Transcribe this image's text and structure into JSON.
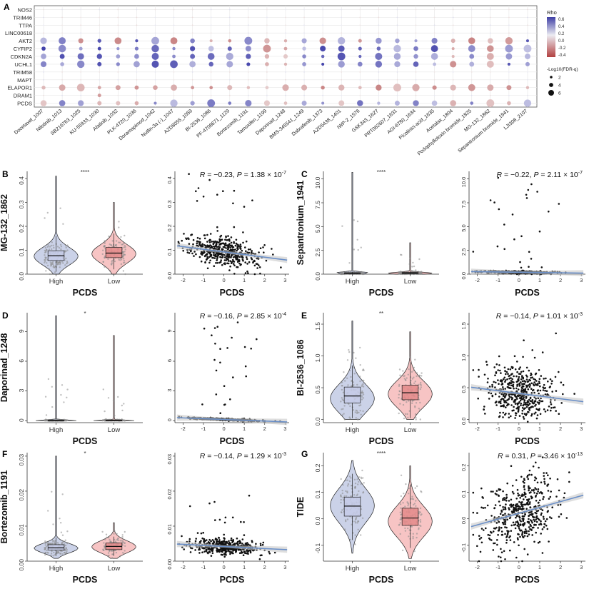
{
  "colors": {
    "high": "#b9c3e0",
    "low": "#f4b0b0",
    "high_box": "#c5cbe8",
    "low_box": "#e48a8a",
    "point": "#111111",
    "jitter": "#8a8a8a",
    "fit_line": "#6a8fc8",
    "ci": "#c8c8c8",
    "rho_high": "#3a3aa0",
    "rho_low": "#b24a4a"
  },
  "chart_data": [
    {
      "panel": "A",
      "type": "dotplot",
      "rows": [
        "NOS2",
        "TRIM46",
        "TTPA",
        "LINC00618",
        "AKT2",
        "CYFIP2",
        "CDKN2A",
        "UCHL1",
        "TRIM58",
        "MAPT",
        "ELAPOR1",
        "DRAM1",
        "PCDS"
      ],
      "columns": [
        "Docetaxel_1007",
        "Nilotinib_1013",
        "SB216763_1025",
        "KU-55933_1030",
        "Afatinib_1032",
        "PLK-4720_1036",
        "Doramapimod_1042",
        "Nutlin-3a (-)_1047",
        "AZD8055_1059",
        "BI-2536_1086",
        "PF-4708671_1129",
        "Bortezomib_1191",
        "Tamoxifen_1199",
        "Daporinad_1248",
        "BMS-345541_1249",
        "Dabrafenib_1373",
        "AZD5438_1401",
        "IWP-2_1576",
        "GSK343_1627",
        "PRT062607_1631",
        "AGI-6780_1634",
        "Picolinici-acid_1635",
        "Acetalax_1804",
        "Podophyllotoxin bromide_1825",
        "MG-132_1862",
        "Sepantronium bromide_1941",
        "LJI308_2107"
      ],
      "active_rows": [
        "AKT2",
        "CYFIP2",
        "CDKN2A",
        "UCHL1",
        "ELAPOR1",
        "PCDS"
      ],
      "legend_rho": {
        "title": "Rho",
        "ticks": [
          "0.6",
          "0.4",
          "0.2",
          "0.0",
          "-0.2",
          "-0.4"
        ],
        "range": [
          -0.45,
          0.65
        ]
      },
      "legend_size": {
        "title": "-Log10(FDR-q)",
        "ticks": [
          "2",
          "4",
          "6"
        ]
      }
    },
    {
      "panel": "B",
      "type": "violin_box",
      "ylabel": "MG-132_1862",
      "xlabel": "PCDS",
      "categories": [
        "High",
        "Low"
      ],
      "yticks": [
        "0.0",
        "0.1",
        "0.2",
        "0.3",
        "0.4"
      ],
      "ylim": [
        0,
        0.43
      ],
      "significance": "****",
      "groups": [
        {
          "name": "High",
          "q1": 0.057,
          "median": 0.077,
          "q3": 0.098,
          "wlo": 0.01,
          "whi": 0.16,
          "min": 0.0,
          "max": 0.41,
          "mode": 0.075
        },
        {
          "name": "Low",
          "q1": 0.069,
          "median": 0.088,
          "q3": 0.112,
          "wlo": 0.02,
          "whi": 0.17,
          "min": 0.0,
          "max": 0.3,
          "mode": 0.085
        }
      ]
    },
    {
      "panel": "B2",
      "type": "scatter",
      "xlabel": "PCDS",
      "xlim": [
        -2.4,
        3.2
      ],
      "ylim": [
        0,
        0.43
      ],
      "xticks": [
        "-2",
        "-1",
        "0",
        "1",
        "2",
        "3"
      ],
      "yticks": [
        "0.0",
        "0.1",
        "0.2",
        "0.3",
        "0.4"
      ],
      "fit": {
        "intercept": 0.093,
        "slope": -0.011
      },
      "stat": {
        "R": "−0.23",
        "P": "1.38 × 10",
        "exp": "-7"
      },
      "cloud": {
        "center": 0.09,
        "spread": 0.03,
        "max": 0.42
      }
    },
    {
      "panel": "C",
      "type": "violin_box",
      "ylabel": "Sepantronium_1941",
      "xlabel": "PCDS",
      "categories": [
        "High",
        "Low"
      ],
      "yticks": [
        "0.0",
        "2.5",
        "5.0",
        "7.5",
        "10.0"
      ],
      "ylim": [
        0,
        10.8
      ],
      "significance": "****",
      "groups": [
        {
          "name": "High",
          "q1": 0.05,
          "median": 0.1,
          "q3": 0.15,
          "wlo": 0.0,
          "whi": 0.25,
          "min": 0.0,
          "max": 10.7,
          "mode": 0.1
        },
        {
          "name": "Low",
          "q1": 0.06,
          "median": 0.12,
          "q3": 0.18,
          "wlo": 0.0,
          "whi": 0.3,
          "min": 0.0,
          "max": 3.3,
          "mode": 0.1
        }
      ]
    },
    {
      "panel": "C2",
      "type": "scatter",
      "xlabel": "PCDS",
      "xlim": [
        -2.4,
        3.2
      ],
      "ylim": [
        0,
        10.8
      ],
      "xticks": [
        "-2",
        "-1",
        "0",
        "1",
        "2",
        "3"
      ],
      "yticks": [
        "0.0",
        "2.5",
        "5.0",
        "7.5",
        "10.0"
      ],
      "fit": {
        "intercept": 0.2,
        "slope": -0.03
      },
      "stat": {
        "R": "−0.22",
        "P": "2.11 × 10",
        "exp": "-7"
      },
      "cloud": {
        "center": 0.12,
        "spread": 0.07,
        "max": 10.5
      }
    },
    {
      "panel": "D",
      "type": "violin_box",
      "ylabel": "Daporinad_1248",
      "xlabel": "PCDS",
      "categories": [
        "High",
        "Low"
      ],
      "yticks": [
        "0",
        "3",
        "6",
        "9"
      ],
      "ylim": [
        -0.2,
        10.9
      ],
      "significance": "*",
      "groups": [
        {
          "name": "High",
          "q1": 0.01,
          "median": 0.02,
          "q3": 0.04,
          "wlo": 0.0,
          "whi": 0.08,
          "min": 0.0,
          "max": 10.6,
          "mode": 0.02
        },
        {
          "name": "Low",
          "q1": 0.01,
          "median": 0.03,
          "q3": 0.05,
          "wlo": 0.0,
          "whi": 0.1,
          "min": 0.0,
          "max": 8.6,
          "mode": 0.02
        }
      ]
    },
    {
      "panel": "D2",
      "type": "scatter",
      "xlabel": "PCDS",
      "xlim": [
        -2.4,
        3.2
      ],
      "ylim": [
        -0.2,
        10.9
      ],
      "xticks": [
        "-2",
        "-1",
        "0",
        "1",
        "2",
        "3"
      ],
      "yticks": [
        "0",
        "3",
        "6",
        "9"
      ],
      "fit": {
        "intercept": 0.12,
        "slope": -0.08
      },
      "stat": {
        "R": "−0.16",
        "P": "2.85 × 10",
        "exp": "-4"
      },
      "cloud": {
        "center": 0.05,
        "spread": 0.05,
        "max": 10.0
      }
    },
    {
      "panel": "E",
      "type": "violin_box",
      "ylabel": "BI-2536_1086",
      "xlabel": "PCDS",
      "categories": [
        "High",
        "Low"
      ],
      "yticks": [
        "0.0",
        "0.5",
        "1.0",
        "1.5"
      ],
      "ylim": [
        -0.05,
        1.68
      ],
      "significance": "**",
      "groups": [
        {
          "name": "High",
          "q1": 0.26,
          "median": 0.37,
          "q3": 0.51,
          "wlo": 0.02,
          "whi": 0.85,
          "min": 0.0,
          "max": 1.55,
          "mode": 0.33
        },
        {
          "name": "Low",
          "q1": 0.31,
          "median": 0.42,
          "q3": 0.54,
          "wlo": 0.02,
          "whi": 0.9,
          "min": 0.0,
          "max": 1.38,
          "mode": 0.4
        }
      ]
    },
    {
      "panel": "E2",
      "type": "scatter",
      "xlabel": "PCDS",
      "xlim": [
        -2.4,
        3.2
      ],
      "ylim": [
        -0.05,
        1.68
      ],
      "xticks": [
        "-2",
        "-1",
        "0",
        "1",
        "2",
        "3"
      ],
      "yticks": [
        "0.0",
        "0.5",
        "1.0",
        "1.5"
      ],
      "fit": {
        "intercept": 0.41,
        "slope": -0.042
      },
      "stat": {
        "R": "−0.14",
        "P": "1.01 × 10",
        "exp": "-3"
      },
      "cloud": {
        "center": 0.42,
        "spread": 0.2,
        "max": 1.4
      }
    },
    {
      "panel": "F",
      "type": "violin_box",
      "ylabel": "Bortezomib_1191",
      "xlabel": "PCDS",
      "categories": [
        "High",
        "Low"
      ],
      "yticks": [
        "0.00",
        "0.01",
        "0.02",
        "0.03"
      ],
      "ylim": [
        0,
        0.031
      ],
      "significance": "*",
      "groups": [
        {
          "name": "High",
          "q1": 0.0032,
          "median": 0.0038,
          "q3": 0.0047,
          "wlo": 0.0015,
          "whi": 0.0068,
          "min": 0.0008,
          "max": 0.03,
          "mode": 0.0037
        },
        {
          "name": "Low",
          "q1": 0.0033,
          "median": 0.0042,
          "q3": 0.0052,
          "wlo": 0.0015,
          "whi": 0.007,
          "min": 0.0008,
          "max": 0.011,
          "mode": 0.0041
        }
      ]
    },
    {
      "panel": "F2",
      "type": "scatter",
      "xlabel": "PCDS",
      "xlim": [
        -2.4,
        3.2
      ],
      "ylim": [
        0,
        0.031
      ],
      "xticks": [
        "-2",
        "-1",
        "0",
        "1",
        "2",
        "3"
      ],
      "yticks": [
        "0.00",
        "0.01",
        "0.02",
        "0.03"
      ],
      "fit": {
        "intercept": 0.0042,
        "slope": -0.0003
      },
      "stat": {
        "R": "−0.14",
        "P": "1.29 × 10",
        "exp": "-3"
      },
      "cloud": {
        "center": 0.0042,
        "spread": 0.0011,
        "max": 0.021
      }
    },
    {
      "panel": "G",
      "type": "violin_box",
      "ylabel": "TIDE",
      "xlabel": "PCDS",
      "categories": [
        "High",
        "Low"
      ],
      "yticks": [
        "-0.1",
        "0.0",
        "0.1",
        "0.2"
      ],
      "ylim": [
        -0.16,
        0.25
      ],
      "significance": "****",
      "groups": [
        {
          "name": "High",
          "q1": 0.01,
          "median": 0.048,
          "q3": 0.082,
          "wlo": -0.08,
          "whi": 0.17,
          "min": -0.13,
          "max": 0.22,
          "mode": 0.05
        },
        {
          "name": "Low",
          "q1": -0.025,
          "median": 0.003,
          "q3": 0.04,
          "wlo": -0.11,
          "whi": 0.13,
          "min": -0.15,
          "max": 0.2,
          "mode": -0.01
        }
      ]
    },
    {
      "panel": "G2",
      "type": "scatter",
      "xlabel": "PCDS",
      "xlim": [
        -2.4,
        3.2
      ],
      "ylim": [
        -0.16,
        0.25
      ],
      "xticks": [
        "-2",
        "-1",
        "0",
        "1",
        "2",
        "3"
      ],
      "yticks": [
        "-0.1",
        "0.0",
        "0.1",
        "0.2"
      ],
      "fit": {
        "intercept": 0.021,
        "slope": 0.022
      },
      "stat": {
        "R": "0.31",
        "P": "3.46 × 10",
        "exp": "-13"
      },
      "cloud": {
        "center": 0.025,
        "spread": 0.06,
        "max": 0.24
      }
    }
  ],
  "panel_letters": [
    "A",
    "B",
    "C",
    "D",
    "E",
    "F",
    "G"
  ]
}
